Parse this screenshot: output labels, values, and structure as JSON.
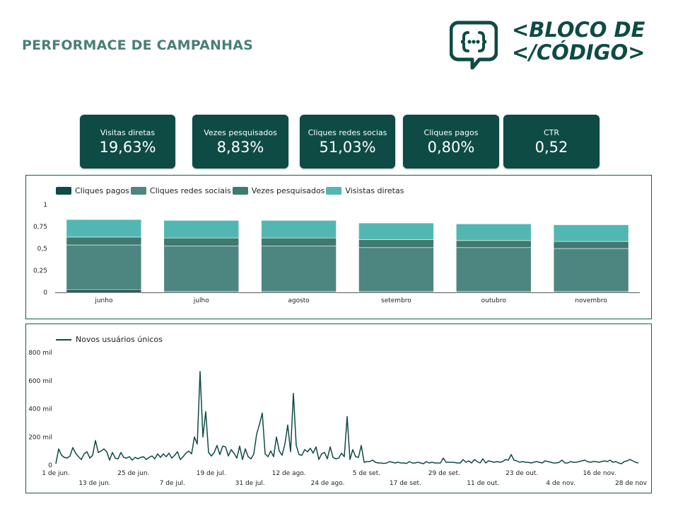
{
  "page": {
    "title": "PERFORMACE DE CAMPANHAS"
  },
  "logo": {
    "line1": "<BLOCO DE",
    "line2": "</CÓDIGO>"
  },
  "kpis": [
    {
      "label": "Visitas diretas",
      "value": "19,63%"
    },
    {
      "label": "Vezes pesquisados",
      "value": "8,83%"
    },
    {
      "label": "Cliques redes socias",
      "value": "51,03%"
    },
    {
      "label": "Cliques pagos",
      "value": "0,80%"
    },
    {
      "label": "CTR",
      "value": "0,52"
    }
  ],
  "colors": {
    "dark": "#0e4b44",
    "cliques_pagos": "#0e4b44",
    "cliques_redes_sociais": "#4d8680",
    "vezes_pesquisados": "#3d7a70",
    "visitas_diretas": "#52b7b2"
  },
  "chart_data": [
    {
      "type": "bar",
      "stacked": true,
      "categories": [
        "junho",
        "julho",
        "agosto",
        "setembro",
        "outubro",
        "novembro"
      ],
      "series": [
        {
          "name": "Cliques pagos",
          "values": [
            0.03,
            0.01,
            0.01,
            0.01,
            0.01,
            0.01
          ]
        },
        {
          "name": "Cliques redes sociais",
          "values": [
            0.51,
            0.52,
            0.52,
            0.5,
            0.5,
            0.49
          ]
        },
        {
          "name": "Vezes pesquisados",
          "values": [
            0.09,
            0.09,
            0.09,
            0.09,
            0.08,
            0.08
          ]
        },
        {
          "name": "Visistas diretas",
          "values": [
            0.2,
            0.2,
            0.2,
            0.19,
            0.19,
            0.19
          ]
        }
      ],
      "yticks": [
        "0",
        "0,25",
        "0,5",
        "0,75",
        "1"
      ],
      "ylim": [
        0,
        1
      ],
      "legend_position": "top-left"
    },
    {
      "type": "line",
      "series": [
        {
          "name": "Novos usuários únicos",
          "values": [
            10000,
            115000,
            70000,
            55000,
            50000,
            65000,
            125000,
            85000,
            60000,
            40000,
            80000,
            95000,
            50000,
            70000,
            175000,
            90000,
            100000,
            115000,
            95000,
            35000,
            90000,
            50000,
            45000,
            90000,
            55000,
            50000,
            60000,
            35000,
            55000,
            45000,
            55000,
            60000,
            40000,
            55000,
            65000,
            45000,
            80000,
            55000,
            80000,
            60000,
            85000,
            50000,
            70000,
            95000,
            40000,
            60000,
            85000,
            100000,
            80000,
            200000,
            150000,
            665000,
            200000,
            380000,
            90000,
            65000,
            90000,
            140000,
            75000,
            135000,
            130000,
            65000,
            110000,
            85000,
            50000,
            135000,
            40000,
            115000,
            60000,
            45000,
            80000,
            220000,
            290000,
            370000,
            80000,
            60000,
            100000,
            60000,
            200000,
            100000,
            70000,
            150000,
            285000,
            95000,
            510000,
            140000,
            75000,
            70000,
            110000,
            95000,
            120000,
            85000,
            130000,
            40000,
            80000,
            90000,
            45000,
            130000,
            55000,
            45000,
            50000,
            85000,
            60000,
            345000,
            40000,
            110000,
            60000,
            55000,
            140000,
            20000,
            25000,
            25000,
            35000,
            20000,
            15000,
            15000,
            12000,
            15000,
            25000,
            20000,
            15000,
            20000,
            15000,
            15000,
            12000,
            25000,
            15000,
            15000,
            20000,
            15000,
            10000,
            25000,
            15000,
            20000,
            15000,
            15000,
            15000,
            50000,
            20000,
            20000,
            20000,
            18000,
            15000,
            15000,
            40000,
            20000,
            30000,
            15000,
            40000,
            25000,
            15000,
            45000,
            15000,
            30000,
            25000,
            20000,
            25000,
            20000,
            25000,
            40000,
            35000,
            75000,
            35000,
            30000,
            20000,
            25000,
            20000,
            20000,
            15000,
            20000,
            25000,
            20000,
            15000,
            30000,
            25000,
            20000,
            15000,
            15000,
            20000,
            35000,
            15000,
            15000,
            25000,
            20000,
            20000,
            25000,
            30000,
            35000,
            25000,
            20000,
            25000,
            25000,
            20000,
            25000,
            30000,
            25000,
            35000,
            20000,
            25000,
            15000,
            10000,
            25000,
            30000,
            40000,
            30000,
            20000,
            15000
          ]
        }
      ],
      "x_ticks_top": [
        "1 de jun.",
        "25 de jun.",
        "19 de jul.",
        "12 de ago.",
        "5 de set.",
        "29 de set.",
        "23 de out.",
        "16 de nov."
      ],
      "x_ticks_bottom": [
        "13 de jun.",
        "7 de jul.",
        "31 de jul.",
        "24 de ago.",
        "17 de set.",
        "11 de out.",
        "4 de nov.",
        "28 de nov"
      ],
      "yticks": [
        "0",
        "200 mil",
        "400 mil",
        "600 mil",
        "800 mil"
      ],
      "ylim": [
        0,
        800000
      ],
      "legend_position": "top-left"
    }
  ]
}
